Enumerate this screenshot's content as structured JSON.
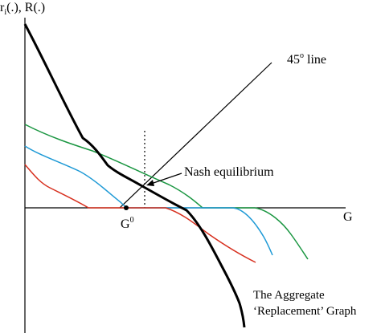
{
  "labels": {
    "y_axis": "r",
    "y_axis_sub": "i",
    "y_axis_rest": "(.), R(.)",
    "x_axis": "G",
    "line45": "45",
    "line45_sup": "o",
    "line45_rest": " line",
    "nash": "Nash equilibrium",
    "g0": "G",
    "g0_sup": "0",
    "aggregate_line1": "The Aggregate",
    "aggregate_line2": "‘Replacement’ Graph"
  },
  "colors": {
    "axis": "#000000",
    "aggregate": "#000000",
    "green_curve": "#1a9641",
    "blue_curve": "#1f9ad6",
    "red_curve": "#d7301f",
    "line45": "#000000"
  }
}
